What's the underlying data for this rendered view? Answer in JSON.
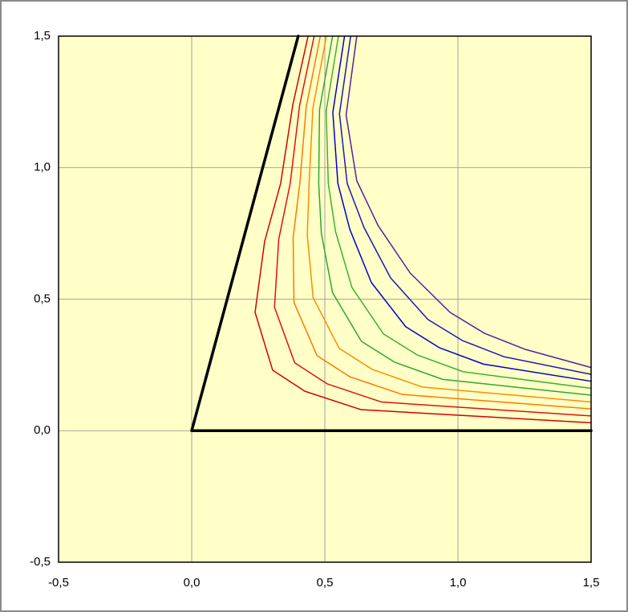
{
  "chart_data": {
    "type": "line",
    "xlim": [
      -0.5,
      1.5
    ],
    "ylim": [
      -0.5,
      1.5
    ],
    "xticks": [
      {
        "value": -0.5,
        "label": "-0,5"
      },
      {
        "value": 0,
        "label": "0,0"
      },
      {
        "value": 0.5,
        "label": "0,5"
      },
      {
        "value": 1,
        "label": "1,0"
      },
      {
        "value": 1.5,
        "label": "1,5"
      }
    ],
    "yticks": [
      {
        "value": -0.5,
        "label": "-0,5"
      },
      {
        "value": 0,
        "label": "0,0"
      },
      {
        "value": 0.5,
        "label": "0,5"
      },
      {
        "value": 1,
        "label": "1,0"
      },
      {
        "value": 1.5,
        "label": "1,5"
      }
    ],
    "grid": true,
    "series": [
      {
        "color": "#000000",
        "line_width": 3.5,
        "x": [
          0.4,
          0,
          1.5
        ],
        "values": [
          1.5,
          0,
          0
        ]
      },
      {
        "color": "#d40000",
        "line_width": 1.5,
        "x": [
          0.437,
          0.38,
          0.334,
          0.274,
          0.238,
          0.304,
          0.425,
          0.636,
          1.5
        ],
        "values": [
          1.5,
          1.24,
          0.94,
          0.72,
          0.45,
          0.23,
          0.15,
          0.08,
          0.03
        ]
      },
      {
        "color": "#e01010",
        "line_width": 1.5,
        "x": [
          0.46,
          0.405,
          0.37,
          0.327,
          0.311,
          0.387,
          0.509,
          0.713,
          1.5
        ],
        "values": [
          1.5,
          1.235,
          0.94,
          0.728,
          0.469,
          0.258,
          0.178,
          0.109,
          0.056
        ]
      },
      {
        "color": "#ff7800",
        "line_width": 1.5,
        "x": [
          0.483,
          0.43,
          0.406,
          0.381,
          0.384,
          0.471,
          0.594,
          0.79,
          1.5
        ],
        "values": [
          1.5,
          1.23,
          0.94,
          0.735,
          0.488,
          0.285,
          0.205,
          0.138,
          0.083
        ]
      },
      {
        "color": "#ff8c00",
        "line_width": 1.5,
        "x": [
          0.506,
          0.455,
          0.441,
          0.434,
          0.456,
          0.554,
          0.678,
          0.866,
          1.5
        ],
        "values": [
          1.5,
          1.225,
          0.94,
          0.743,
          0.506,
          0.313,
          0.233,
          0.166,
          0.109
        ]
      },
      {
        "color": "#2ea82e",
        "line_width": 1.5,
        "x": [
          0.529,
          0.48,
          0.477,
          0.487,
          0.529,
          0.637,
          0.763,
          0.943,
          1.5
        ],
        "values": [
          1.5,
          1.22,
          0.94,
          0.75,
          0.525,
          0.34,
          0.26,
          0.195,
          0.135
        ]
      },
      {
        "color": "#3cb034",
        "line_width": 1.5,
        "x": [
          0.551,
          0.505,
          0.513,
          0.54,
          0.602,
          0.72,
          0.847,
          1.02,
          1.5
        ],
        "values": [
          1.5,
          1.215,
          0.94,
          0.758,
          0.544,
          0.368,
          0.288,
          0.224,
          0.161
        ]
      },
      {
        "color": "#0000c8",
        "line_width": 1.5,
        "x": [
          0.574,
          0.53,
          0.549,
          0.594,
          0.675,
          0.804,
          0.931,
          1.096,
          1.5
        ],
        "values": [
          1.5,
          1.21,
          0.94,
          0.765,
          0.563,
          0.395,
          0.315,
          0.253,
          0.188
        ]
      },
      {
        "color": "#1a1ab4",
        "line_width": 1.5,
        "x": [
          0.597,
          0.555,
          0.584,
          0.647,
          0.747,
          0.887,
          1.016,
          1.173,
          1.5
        ],
        "values": [
          1.5,
          1.205,
          0.94,
          0.773,
          0.581,
          0.423,
          0.343,
          0.281,
          0.214
        ]
      },
      {
        "color": "#5a1e9e",
        "line_width": 1.5,
        "x": [
          0.62,
          0.58,
          0.62,
          0.7,
          0.82,
          0.97,
          1.1,
          1.25,
          1.5
        ],
        "values": [
          1.5,
          1.2,
          0.95,
          0.78,
          0.6,
          0.45,
          0.37,
          0.31,
          0.24
        ]
      }
    ]
  }
}
